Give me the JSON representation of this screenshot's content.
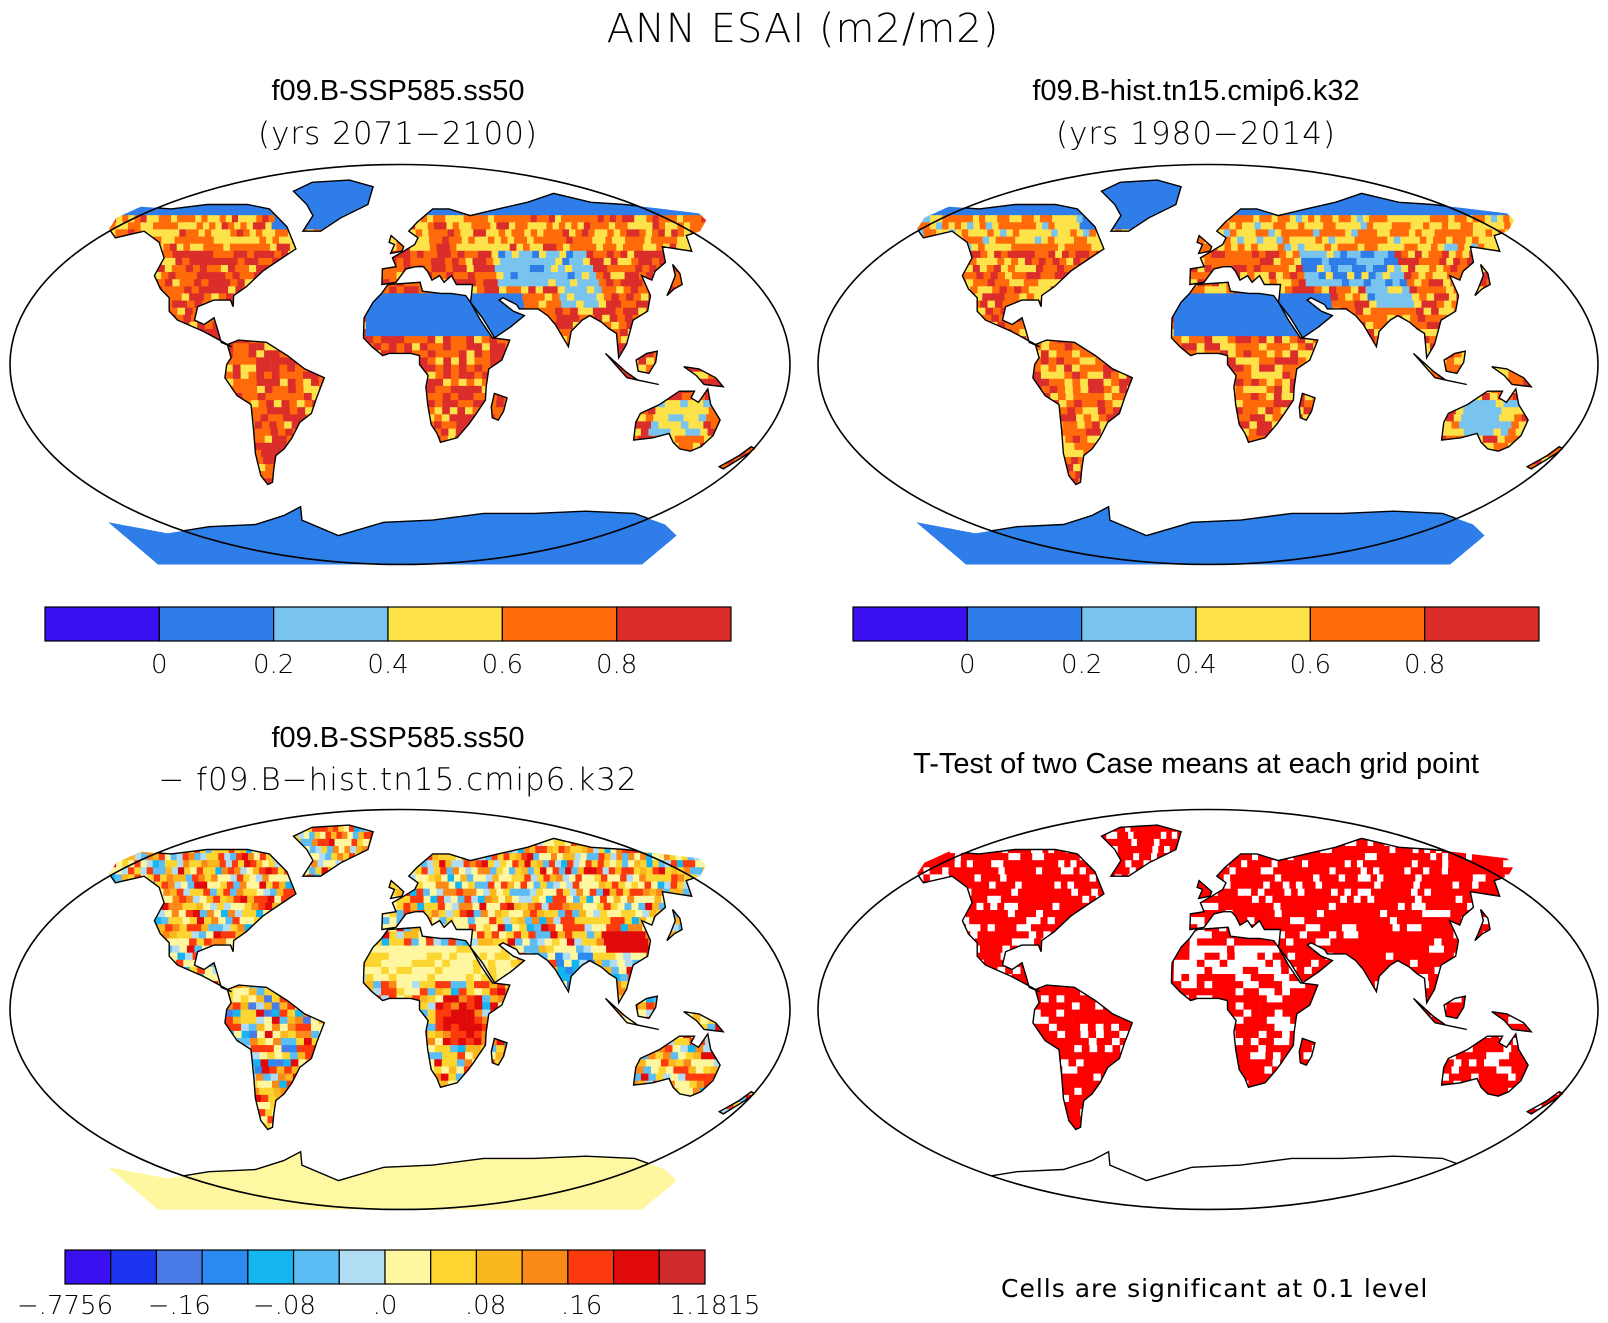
{
  "title": "ANN ESAI (m2/m2)",
  "panels": [
    {
      "id": "top-left",
      "title": "f09.B-SSP585.ss50",
      "subtitle": "(yrs 2071−2100)"
    },
    {
      "id": "top-right",
      "title": "f09.B-hist.tn15.cmip6.k32",
      "subtitle": "(yrs 1980−2014)"
    },
    {
      "id": "bottom-left",
      "title": "f09.B-SSP585.ss50",
      "subtitle": "− f09.B−hist.tn15.cmip6.k32"
    },
    {
      "id": "bottom-right",
      "title": "T-Test of two Case means at each grid point"
    }
  ],
  "colorbar_abs": {
    "colors": [
      "#3a10f0",
      "#2f7de8",
      "#79c4ee",
      "#fde24a",
      "#ff6a0a",
      "#db2e2a"
    ],
    "labels": [
      "0",
      "0.2",
      "0.4",
      "0.6",
      "0.8"
    ]
  },
  "colorbar_diff": {
    "colors": [
      "#3a10f0",
      "#1b35f0",
      "#4a7ae6",
      "#2a8af2",
      "#15b5f2",
      "#5bbdf3",
      "#b0dcf4",
      "#fff7a0",
      "#fdd530",
      "#fbb81e",
      "#fb8918",
      "#fc3a0d",
      "#e10a0a",
      "#cf2a2c"
    ],
    "labels": [
      "−.7756",
      "−.16",
      "−.08",
      ".0",
      ".08",
      ".16",
      "1.1815"
    ]
  },
  "significance_note": "Cells are significant at 0.1 level",
  "colors": {
    "ocean": "#ffffff",
    "land_outline": "#000000",
    "significant": "#ff0000",
    "antarctica_abs": "#2d7fea",
    "antarctica_diff": "#fff8a3"
  }
}
